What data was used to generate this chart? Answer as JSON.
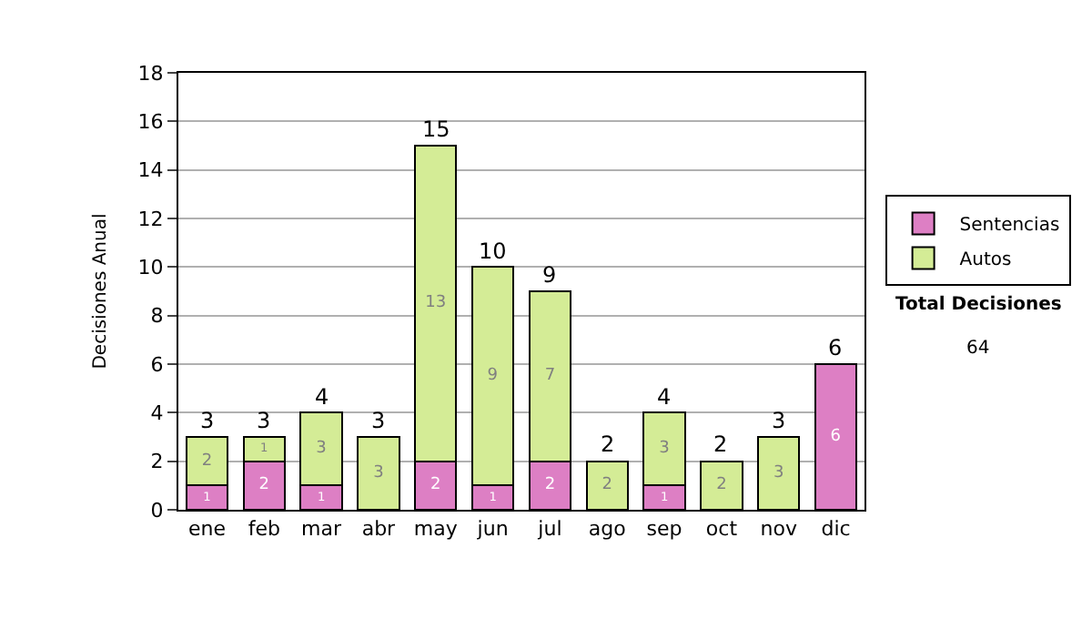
{
  "chart_data": {
    "type": "bar",
    "stacked": true,
    "ylabel": "Decisiones Anual",
    "categories": [
      "ene",
      "feb",
      "mar",
      "abr",
      "may",
      "jun",
      "jul",
      "ago",
      "sep",
      "oct",
      "nov",
      "dic"
    ],
    "series": [
      {
        "name": "Sentencias",
        "color": "#dd7fc4",
        "values": [
          1,
          2,
          1,
          0,
          2,
          1,
          2,
          0,
          1,
          0,
          0,
          6
        ],
        "value_labels": [
          "1",
          "2",
          "1",
          null,
          "2",
          "1",
          "2",
          null,
          "1",
          null,
          null,
          "6"
        ]
      },
      {
        "name": "Autos",
        "color": "#d4ec96",
        "values": [
          2,
          1,
          3,
          3,
          13,
          9,
          7,
          2,
          3,
          2,
          3,
          0
        ],
        "value_labels": [
          "2",
          "1",
          "3",
          "3",
          "13",
          "9",
          "7",
          "2",
          "3",
          "2",
          "3",
          null
        ]
      }
    ],
    "totals": [
      "3",
      "3",
      "4",
      "3",
      "15",
      "10",
      "9",
      "2",
      "4",
      "2",
      "3",
      "6"
    ],
    "ylim": [
      0,
      18
    ],
    "yticks": [
      0,
      2,
      4,
      6,
      8,
      10,
      12,
      14,
      16,
      18
    ],
    "grid": "y",
    "legend": "right",
    "annotations": [
      "Total Decisiones",
      "64"
    ]
  }
}
